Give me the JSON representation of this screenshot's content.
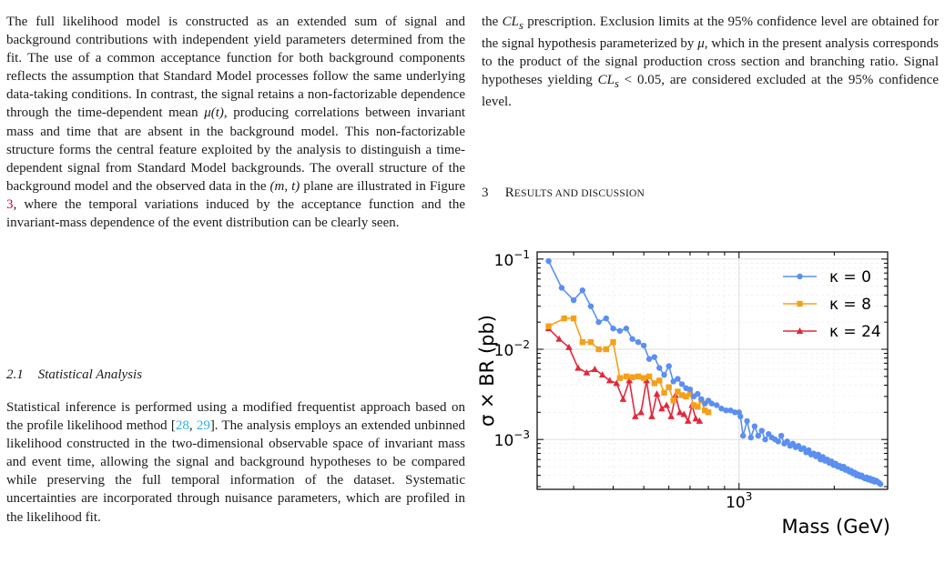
{
  "left_column": {
    "paragraph1": {
      "p1": "The full likelihood model is constructed as an extended sum of signal and background contributions with independent yield parameters determined from the fit. The use of a common acceptance function for both background components reflects the assumption that Standard Model processes follow the same underlying data-taking conditions. In contrast, the signal retains a non-factorizable dependence through the time-dependent mean ",
      "mu_t": "μ(t)",
      "p2": ", producing correlations between invariant mass and time that are absent in the background model. This non-factorizable structure forms the central feature exploited by the analysis to distinguish a time-dependent signal from Standard Model backgrounds. The overall structure of the background model and the observed data in the ",
      "mt": "(m, t)",
      "p3": " plane are illustrated in Figure ",
      "fig_ref": "3",
      "p4": ", where the temporal variations induced by the acceptance function and the invariant-mass dependence of the event distribution can be clearly seen."
    },
    "subsection": {
      "number": "2.1",
      "title": "Statistical Analysis"
    },
    "paragraph2": {
      "p1": "Statistical inference is performed using a modified frequentist approach based on the profile likelihood method [",
      "cite1": "28",
      "sep": ", ",
      "cite2": "29",
      "p2": "]. The analysis employs an extended unbinned likelihood constructed in the two-dimensional observable space of invariant mass and event time, allowing the signal and background hypotheses to be compared while preserving the full temporal information of the dataset. Systematic uncertainties are incorporated through nuisance parameters, which are profiled in the likelihood fit."
    }
  },
  "right_column": {
    "paragraph": {
      "p1": "the ",
      "cls1": "CL",
      "cls1_sub": "s",
      "p2": " prescription. Exclusion limits at the 95% confidence level are obtained for the signal hypothesis parameterized by ",
      "mu": "μ",
      "p3": ", which in the present analysis corresponds to the product of the signal production cross section and branching ratio. Signal hypotheses yielding ",
      "cls2": "CL",
      "cls2_sub": "s",
      "p4": " < 0.05, are considered excluded at the 95% confidence level."
    },
    "section": {
      "number": "3",
      "title_first": "R",
      "title_rest": "ESULTS AND DISCUSSION"
    }
  },
  "chart_data": {
    "type": "line",
    "xlabel": "Mass (GeV)",
    "ylabel": "σ × BR (pb)",
    "xscale": "log",
    "yscale": "log",
    "xlim": [
      230,
      2950
    ],
    "ylim": [
      0.00028,
      0.12
    ],
    "x_ticks": [
      {
        "value": 1000,
        "base": "10",
        "exp": "3"
      }
    ],
    "y_ticks": [
      {
        "value": 0.1,
        "base": "10",
        "exp": "−1"
      },
      {
        "value": 0.01,
        "base": "10",
        "exp": "−2"
      },
      {
        "value": 0.001,
        "base": "10",
        "exp": "−3"
      }
    ],
    "grid": true,
    "legend_position": "top-right",
    "series": [
      {
        "name": "κ = 0",
        "color": "#5b8ff0",
        "marker": "circle",
        "x": [
          250,
          275,
          300,
          320,
          340,
          360,
          380,
          400,
          420,
          440,
          460,
          480,
          500,
          520,
          540,
          560,
          580,
          600,
          620,
          640,
          660,
          680,
          700,
          720,
          740,
          760,
          780,
          800,
          820,
          850,
          880,
          910,
          940,
          970,
          1000,
          1010,
          1030,
          1060,
          1090,
          1120,
          1150,
          1180,
          1210,
          1240,
          1270,
          1300,
          1330,
          1360,
          1390,
          1420,
          1450,
          1480,
          1510,
          1540,
          1570,
          1600,
          1630,
          1660,
          1690,
          1720,
          1750,
          1780,
          1810,
          1840,
          1870,
          1900,
          1930,
          1960,
          1990,
          2020,
          2050,
          2080,
          2110,
          2140,
          2170,
          2200,
          2230,
          2260,
          2290,
          2320,
          2350,
          2380,
          2410,
          2440,
          2470,
          2500,
          2530,
          2560,
          2590,
          2620,
          2650,
          2680,
          2710,
          2740,
          2770,
          2800
        ],
        "y": [
          0.095,
          0.048,
          0.035,
          0.045,
          0.03,
          0.02,
          0.022,
          0.017,
          0.016,
          0.017,
          0.013,
          0.012,
          0.011,
          0.0078,
          0.0082,
          0.0062,
          0.0052,
          0.0065,
          0.0044,
          0.0047,
          0.0041,
          0.0037,
          0.0036,
          0.003,
          0.0032,
          0.0028,
          0.0025,
          0.0027,
          0.0025,
          0.0024,
          0.0022,
          0.0021,
          0.0021,
          0.002,
          0.002,
          0.0018,
          0.0011,
          0.0016,
          0.00105,
          0.0014,
          0.0011,
          0.00125,
          0.001,
          0.00115,
          0.00105,
          0.001,
          0.00095,
          0.0011,
          0.0009,
          0.00095,
          0.00085,
          0.0009,
          0.00082,
          0.00085,
          0.00078,
          0.0008,
          0.00072,
          0.00076,
          0.00068,
          0.0007,
          0.00065,
          0.00068,
          0.0006,
          0.00064,
          0.00058,
          0.0006,
          0.00055,
          0.00057,
          0.00052,
          0.00054,
          0.0005,
          0.00051,
          0.00048,
          0.0005,
          0.00046,
          0.00047,
          0.00044,
          0.00045,
          0.00042,
          0.00043,
          0.0004,
          0.00041,
          0.00039,
          0.0004,
          0.00038,
          0.00037,
          0.00038,
          0.00036,
          0.00037,
          0.00035,
          0.00036,
          0.00034,
          0.00035,
          0.00034,
          0.00033,
          0.00032
        ]
      },
      {
        "name": "κ = 8",
        "color": "#f5a01a",
        "marker": "square",
        "x": [
          250,
          280,
          300,
          320,
          340,
          360,
          380,
          400,
          420,
          440,
          460,
          480,
          500,
          520,
          540,
          560,
          580,
          600,
          620,
          640,
          660,
          680,
          700,
          720,
          740,
          760,
          780,
          800
        ],
        "y": [
          0.018,
          0.022,
          0.022,
          0.012,
          0.012,
          0.01,
          0.01,
          0.012,
          0.0048,
          0.005,
          0.0049,
          0.005,
          0.0048,
          0.005,
          0.0042,
          0.0045,
          0.0033,
          0.0038,
          0.0027,
          0.0034,
          0.0031,
          0.003,
          0.0032,
          0.0024,
          0.0023,
          0.0027,
          0.0021,
          0.002
        ]
      },
      {
        "name": "κ = 24",
        "color": "#e2283c",
        "marker": "triangle",
        "x": [
          250,
          270,
          290,
          310,
          330,
          350,
          370,
          390,
          410,
          430,
          450,
          470,
          490,
          510,
          530,
          550,
          570,
          590,
          610,
          630,
          650,
          670,
          690,
          710,
          730,
          750
        ],
        "y": [
          0.017,
          0.013,
          0.0105,
          0.0062,
          0.0055,
          0.006,
          0.0052,
          0.0045,
          0.0042,
          0.0028,
          0.0045,
          0.0018,
          0.002,
          0.0045,
          0.0018,
          0.0032,
          0.0022,
          0.0024,
          0.0018,
          0.0031,
          0.002,
          0.0019,
          0.0016,
          0.0024,
          0.0017,
          0.0016
        ]
      }
    ]
  }
}
